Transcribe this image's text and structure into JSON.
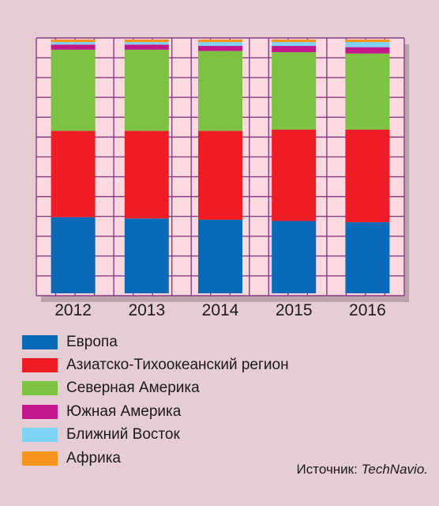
{
  "chart_data": {
    "type": "bar",
    "stacked": true,
    "categories": [
      "2012",
      "2013",
      "2014",
      "2015",
      "2016"
    ],
    "ylim": [
      0,
      100
    ],
    "grid": true,
    "legend_position": "bottom",
    "series": [
      {
        "name": "Европа",
        "color": "#0a6ab8",
        "values": [
          30,
          29.5,
          29,
          28.5,
          28
        ]
      },
      {
        "name": "Азиатско-Тихоокеанский регион",
        "color": "#ee1c25",
        "values": [
          34,
          34.5,
          35,
          36,
          36.5
        ]
      },
      {
        "name": "Северная Америка",
        "color": "#7dc242",
        "values": [
          32,
          32,
          31.5,
          30.5,
          30
        ]
      },
      {
        "name": "Южная Америка",
        "color": "#c2188c",
        "values": [
          2,
          2,
          2,
          2.5,
          2.5
        ]
      },
      {
        "name": "Ближний Восток",
        "color": "#7fd3f2",
        "values": [
          1,
          1,
          1.5,
          1.5,
          2
        ]
      },
      {
        "name": "Африка",
        "color": "#f7941d",
        "values": [
          1,
          1,
          1,
          1,
          1
        ]
      }
    ]
  },
  "source": {
    "prefix": "Источник: ",
    "name": "TechNavio."
  }
}
